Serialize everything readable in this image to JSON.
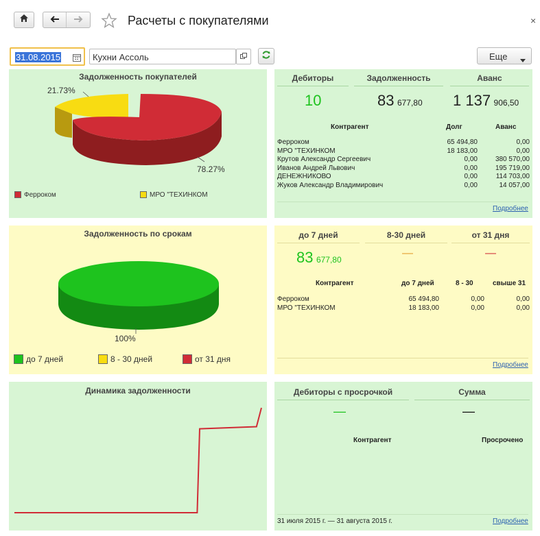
{
  "window": {
    "title": "Расчеты с покупателями",
    "close_glyph": "×"
  },
  "toolbar": {
    "date": "31.08.2015",
    "company": "Кухни Ассоль",
    "more_label": "Еще",
    "icons": [
      "home-icon",
      "back-arrow-icon",
      "forward-arrow-icon",
      "star-icon",
      "calendar-icon",
      "open-link-icon",
      "refresh-icon",
      "dropdown-arrow-icon"
    ]
  },
  "colors": {
    "green_panel": "#d8f5d4",
    "yellow_panel": "#fefbc5",
    "ferrokom": "#d02c36",
    "mpo": "#f8dc12",
    "green_big": "#1ec31e",
    "link": "#2a5fb0"
  },
  "panel_debt": {
    "title": "Задолженность покупателей",
    "label_small": "21.73%",
    "label_big": "78.27%",
    "legend": [
      "Ферроком",
      "МРО \"ТЕХИНКОМ"
    ],
    "chart_data": {
      "type": "pie",
      "categories": [
        "Ферроком",
        "МРО \"ТЕХИНКОМ"
      ],
      "values": [
        78.27,
        21.73
      ],
      "title": "Задолженность покупателей",
      "legend_position": "bottom"
    }
  },
  "panel_debtors": {
    "headers": [
      "Дебиторы",
      "Задолженность",
      "Аванс"
    ],
    "count": "10",
    "debt_int": "83",
    "debt_frac": "677,80",
    "advance_int": "1 137",
    "advance_frac": "906,50",
    "table_headers": [
      "Контрагент",
      "Долг",
      "Аванс"
    ],
    "rows": [
      {
        "name": "Ферроком",
        "debt": "65 494,80",
        "advance": "0,00"
      },
      {
        "name": "МРО \"ТЕХИНКОМ",
        "debt": "18 183,00",
        "advance": "0,00"
      },
      {
        "name": "Крутов Александр Сергеевич",
        "debt": "0,00",
        "advance": "380 570,00"
      },
      {
        "name": "Иванов Андрей Львович",
        "debt": "0,00",
        "advance": "195 719,00"
      },
      {
        "name": "ДЕНЕЖНИКОВО",
        "debt": "0,00",
        "advance": "114 703,00"
      },
      {
        "name": "Жуков Александр Владимирович",
        "debt": "0,00",
        "advance": "14 057,00"
      }
    ],
    "more_link": "Подробнее"
  },
  "panel_terms": {
    "title": "Задолженность по срокам",
    "label": "100%",
    "legend": [
      "до 7 дней",
      "8 - 30 дней",
      "от 31 дня"
    ],
    "chart_data": {
      "type": "pie",
      "categories": [
        "до 7 дней",
        "8 - 30 дней",
        "от 31 дня"
      ],
      "values": [
        100,
        0,
        0
      ],
      "title": "Задолженность по срокам",
      "legend_position": "bottom"
    }
  },
  "panel_aging": {
    "headers": [
      "до 7 дней",
      "8-30 дней",
      "от 31 дня"
    ],
    "v1_int": "83",
    "v1_frac": "677,80",
    "v2": "—",
    "v3": "—",
    "table_headers": [
      "Контрагент",
      "до 7 дней",
      "8 - 30",
      "свыше 31"
    ],
    "rows": [
      {
        "name": "Ферроком",
        "c1": "65 494,80",
        "c2": "0,00",
        "c3": "0,00"
      },
      {
        "name": "МРО \"ТЕХИНКОМ",
        "c1": "18 183,00",
        "c2": "0,00",
        "c3": "0,00"
      }
    ],
    "more_link": "Подробнее"
  },
  "panel_dynamics": {
    "title": "Динамика задолженности",
    "chart_data": {
      "type": "line",
      "title": "Динамика задолженности",
      "xlabel": "",
      "ylabel": "",
      "grid": false,
      "series": [
        {
          "x": [
            0,
            0.74,
            0.75,
            0.98,
            1.0
          ],
          "values": [
            0,
            0,
            0.8,
            0.82,
            1.0
          ]
        }
      ]
    }
  },
  "panel_overdue": {
    "headers": [
      "Дебиторы с просрочкой",
      "Сумма"
    ],
    "v1": "—",
    "v2": "—",
    "table_headers": [
      "Контрагент",
      "Просрочено"
    ],
    "period": "31 июля 2015 г. — 31 августа 2015 г.",
    "more_link": "Подробнее"
  }
}
